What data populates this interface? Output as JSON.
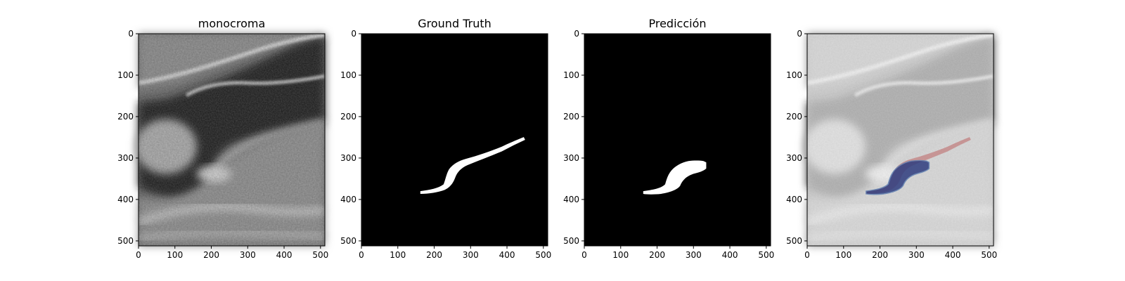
{
  "figure": {
    "panels": [
      {
        "title": "monocroma",
        "kind": "grayscale-image"
      },
      {
        "title": "Ground Truth",
        "kind": "mask"
      },
      {
        "title": "Predicción",
        "kind": "mask"
      },
      {
        "title": "",
        "kind": "overlay"
      }
    ],
    "axes": {
      "x_ticks": [
        0,
        100,
        200,
        300,
        400,
        500
      ],
      "y_ticks": [
        0,
        100,
        200,
        300,
        400,
        500
      ],
      "x_range": [
        0,
        512
      ],
      "y_range": [
        0,
        512
      ]
    },
    "colors": {
      "mask_background": "#000000",
      "mask_foreground": "#ffffff",
      "ground_truth_overlay": "#c28080",
      "prediction_overlay": "#2f3d7f"
    }
  }
}
